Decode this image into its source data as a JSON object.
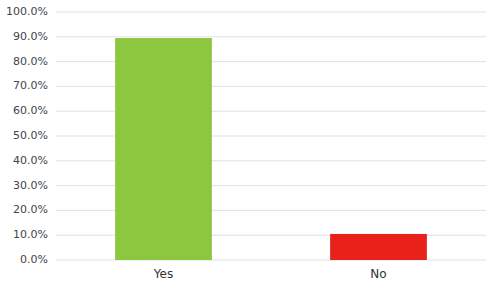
{
  "chart_data": {
    "type": "bar",
    "categories": [
      "Yes",
      "No"
    ],
    "values": [
      89.5,
      10.5
    ],
    "colors": [
      "#8dc63f",
      "#e8221a"
    ],
    "ylim": [
      0,
      100
    ],
    "yticks": [
      {
        "value": 0,
        "label": "0.0%"
      },
      {
        "value": 10,
        "label": "10.0%"
      },
      {
        "value": 20,
        "label": "20.0%"
      },
      {
        "value": 30,
        "label": "30.0%"
      },
      {
        "value": 40,
        "label": "40.0%"
      },
      {
        "value": 50,
        "label": "50.0%"
      },
      {
        "value": 60,
        "label": "60.0%"
      },
      {
        "value": 70,
        "label": "70.0%"
      },
      {
        "value": 80,
        "label": "80.0%"
      },
      {
        "value": 90,
        "label": "90.0%"
      },
      {
        "value": 100,
        "label": "100.0%"
      }
    ],
    "grid": true
  }
}
